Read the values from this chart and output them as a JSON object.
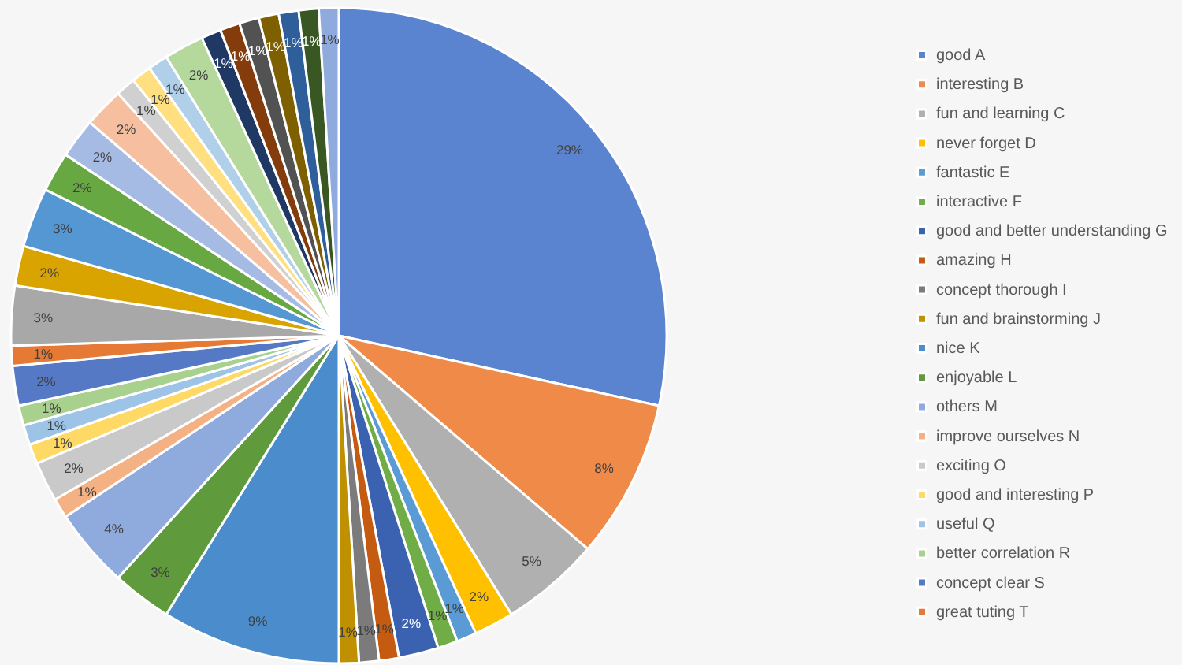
{
  "chart_data": {
    "type": "pie",
    "categories": [
      "good A",
      "interesting B",
      "fun and learning C",
      "never forget D",
      "fantastic E",
      "interactive F",
      "good and better understanding G",
      "amazing H",
      "concept thorough I",
      "fun and brainstorming J",
      "nice K",
      "enjoyable L",
      "others M",
      "improve ourselves N",
      "exciting O",
      "good and interesting P",
      "useful Q",
      "better correlation R",
      "concept clear S",
      "great tuting T",
      null,
      null,
      null,
      null,
      null,
      null,
      null,
      null,
      null,
      null,
      null,
      null,
      null,
      null,
      null,
      null,
      null
    ],
    "values": [
      29,
      8,
      5,
      2,
      1,
      1,
      2,
      1,
      1,
      1,
      9,
      3,
      4,
      1,
      2,
      1,
      1,
      1,
      2,
      1,
      3,
      2,
      3,
      2,
      2,
      2,
      1,
      1,
      1,
      2,
      1,
      1,
      1,
      1,
      1,
      1,
      1
    ],
    "value_labels": [
      "29%",
      "8%",
      "5%",
      "2%",
      "1%",
      "1%",
      "2%",
      "1%",
      "1%",
      "1%",
      "9%",
      "3%",
      "4%",
      "1%",
      "2%",
      "1%",
      "1%",
      "1%",
      "2%",
      "1%",
      "3%",
      "2%",
      "3%",
      "2%",
      "2%",
      "2%",
      "1%",
      "1%",
      "1%",
      "2%",
      "1%",
      "1%",
      "1%",
      "1%",
      "1%",
      "1%",
      "1%"
    ],
    "colors": [
      "#5b84d0",
      "#ef8a48",
      "#b0b0b0",
      "#ffc000",
      "#5b9bd5",
      "#70ad47",
      "#3a62b0",
      "#c55a11",
      "#7b7b7b",
      "#bf9000",
      "#4a8ccc",
      "#5f9a3c",
      "#8faadc",
      "#f4b183",
      "#c9c9c9",
      "#ffd966",
      "#9dc3e6",
      "#a9d18e",
      "#5679c6",
      "#e67a35",
      "#a8a8a8",
      "#d9a300",
      "#5597d2",
      "#68a843",
      "#a6bbe4",
      "#f6bfa0",
      "#d0d0d0",
      "#ffdf80",
      "#b0cfe9",
      "#b5d99c",
      "#203864",
      "#843c0c",
      "#525252",
      "#7f6000",
      "#2e5f9a",
      "#385723",
      "#8faadc"
    ],
    "legend": "right"
  }
}
